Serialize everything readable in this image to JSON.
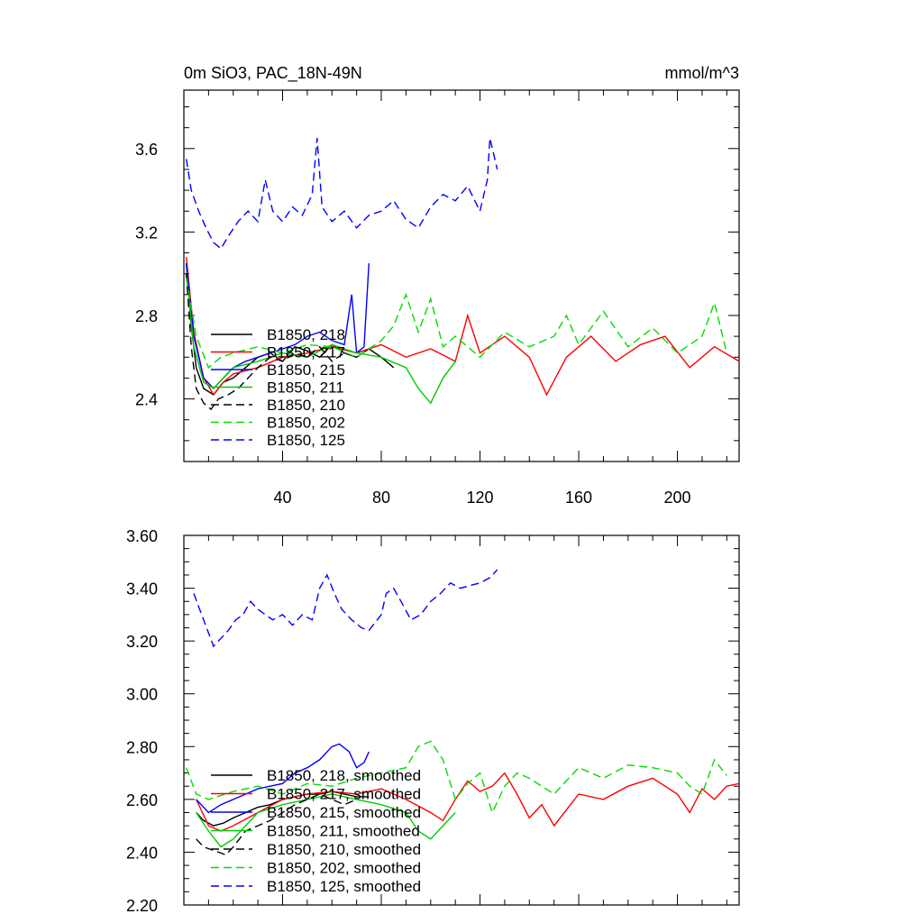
{
  "chart_data": [
    {
      "type": "line",
      "title": "0m SiO3, PAC_18N-49N",
      "units": "mmol/m^3",
      "xlim": [
        0,
        225
      ],
      "ylim": [
        2.1,
        3.88
      ],
      "xticks": [
        40,
        80,
        120,
        160,
        200
      ],
      "xtick_labels": [
        "40",
        "80",
        "120",
        "160",
        "200"
      ],
      "yticks": [
        2.4,
        2.8,
        3.2,
        3.6
      ],
      "ytick_labels": [
        "2.4",
        "2.8",
        "3.2",
        "3.6"
      ],
      "legend_position": "lower-left",
      "series": [
        {
          "name": "B1850, 218",
          "color": "#000000",
          "dash": "solid",
          "x": [
            1,
            3,
            5,
            8,
            12,
            16,
            20,
            25,
            30,
            35,
            40,
            45,
            50,
            55,
            60,
            65,
            70,
            75,
            80,
            85
          ],
          "y": [
            3.05,
            2.75,
            2.55,
            2.45,
            2.42,
            2.48,
            2.5,
            2.55,
            2.6,
            2.62,
            2.58,
            2.65,
            2.63,
            2.6,
            2.66,
            2.62,
            2.6,
            2.64,
            2.6,
            2.55
          ]
        },
        {
          "name": "B1850, 217",
          "color": "#ff0000",
          "dash": "solid",
          "x": [
            1,
            4,
            8,
            12,
            16,
            20,
            30,
            40,
            50,
            60,
            70,
            80,
            90,
            100,
            110,
            115,
            120,
            130,
            140,
            147,
            155,
            165,
            175,
            185,
            195,
            205,
            215,
            225
          ],
          "y": [
            3.08,
            2.72,
            2.5,
            2.42,
            2.48,
            2.52,
            2.55,
            2.6,
            2.62,
            2.65,
            2.62,
            2.66,
            2.6,
            2.64,
            2.58,
            2.8,
            2.62,
            2.7,
            2.6,
            2.42,
            2.6,
            2.7,
            2.58,
            2.66,
            2.7,
            2.55,
            2.65,
            2.58
          ]
        },
        {
          "name": "B1850, 215",
          "color": "#0000ff",
          "dash": "solid",
          "x": [
            1,
            4,
            8,
            12,
            16,
            20,
            25,
            30,
            35,
            40,
            45,
            50,
            55,
            60,
            65,
            68,
            70,
            73,
            75
          ],
          "y": [
            3.05,
            2.7,
            2.5,
            2.45,
            2.5,
            2.55,
            2.58,
            2.6,
            2.62,
            2.64,
            2.66,
            2.7,
            2.72,
            2.68,
            2.66,
            2.9,
            2.62,
            2.65,
            3.05
          ]
        },
        {
          "name": "B1850, 211",
          "color": "#00cc00",
          "dash": "solid",
          "x": [
            1,
            4,
            8,
            12,
            16,
            20,
            30,
            40,
            50,
            60,
            70,
            80,
            90,
            95,
            100,
            105,
            110
          ],
          "y": [
            3.0,
            2.65,
            2.48,
            2.45,
            2.5,
            2.55,
            2.58,
            2.62,
            2.6,
            2.66,
            2.62,
            2.6,
            2.55,
            2.45,
            2.38,
            2.5,
            2.58
          ]
        },
        {
          "name": "B1850, 210",
          "color": "#000000",
          "dash": "dashed",
          "x": [
            1,
            3,
            5,
            8,
            11,
            14,
            18,
            22,
            26,
            30,
            35,
            40,
            45,
            50,
            55,
            60,
            65,
            70
          ],
          "y": [
            3.0,
            2.65,
            2.45,
            2.38,
            2.35,
            2.4,
            2.42,
            2.45,
            2.5,
            2.55,
            2.6,
            2.58,
            2.62,
            2.6,
            2.65,
            2.58,
            2.62,
            2.6
          ]
        },
        {
          "name": "B1850, 202",
          "color": "#00dd00",
          "dash": "dashed",
          "x": [
            1,
            5,
            10,
            15,
            20,
            30,
            40,
            50,
            60,
            70,
            80,
            85,
            90,
            95,
            100,
            105,
            110,
            120,
            130,
            140,
            150,
            155,
            160,
            170,
            180,
            190,
            200,
            210,
            215,
            220
          ],
          "y": [
            2.98,
            2.7,
            2.55,
            2.6,
            2.62,
            2.65,
            2.62,
            2.66,
            2.65,
            2.6,
            2.68,
            2.75,
            2.9,
            2.72,
            2.88,
            2.65,
            2.7,
            2.6,
            2.72,
            2.65,
            2.7,
            2.8,
            2.66,
            2.82,
            2.65,
            2.74,
            2.62,
            2.7,
            2.86,
            2.62
          ]
        },
        {
          "name": "B1850, 125",
          "color": "#0000ff",
          "dash": "dashed",
          "x": [
            1,
            3,
            6,
            9,
            12,
            15,
            18,
            22,
            26,
            30,
            33,
            36,
            40,
            44,
            48,
            52,
            54,
            56,
            60,
            65,
            70,
            75,
            80,
            85,
            90,
            95,
            100,
            105,
            110,
            115,
            120,
            123,
            124,
            127
          ],
          "y": [
            3.55,
            3.4,
            3.3,
            3.22,
            3.15,
            3.12,
            3.18,
            3.25,
            3.3,
            3.25,
            3.45,
            3.3,
            3.25,
            3.32,
            3.28,
            3.38,
            3.65,
            3.32,
            3.25,
            3.3,
            3.22,
            3.28,
            3.3,
            3.35,
            3.26,
            3.22,
            3.32,
            3.38,
            3.35,
            3.42,
            3.3,
            3.45,
            3.65,
            3.5
          ]
        }
      ]
    },
    {
      "type": "line",
      "xlim": [
        0,
        225
      ],
      "ylim": [
        2.2,
        3.6
      ],
      "yticks": [
        2.2,
        2.4,
        2.6,
        2.8,
        3.0,
        3.2,
        3.4,
        3.6
      ],
      "ytick_labels": [
        "2.20",
        "2.40",
        "2.60",
        "2.80",
        "3.00",
        "3.20",
        "3.40",
        "3.60"
      ],
      "legend_position": "lower-left",
      "series": [
        {
          "name": "B1850, 218, smoothed",
          "color": "#000000",
          "dash": "solid",
          "x": [
            5,
            8,
            12,
            16,
            20,
            25,
            30,
            35,
            40,
            45,
            50,
            55,
            60,
            65,
            70,
            75
          ],
          "y": [
            2.55,
            2.52,
            2.5,
            2.51,
            2.53,
            2.55,
            2.57,
            2.58,
            2.6,
            2.61,
            2.62,
            2.62,
            2.63,
            2.62,
            2.61,
            2.61
          ]
        },
        {
          "name": "B1850, 217, smoothed",
          "color": "#ff0000",
          "dash": "solid",
          "x": [
            5,
            10,
            15,
            20,
            30,
            40,
            50,
            60,
            70,
            80,
            90,
            100,
            105,
            110,
            115,
            120,
            125,
            130,
            135,
            140,
            145,
            150,
            160,
            170,
            180,
            190,
            200,
            205,
            210,
            215,
            220,
            225
          ],
          "y": [
            2.6,
            2.5,
            2.48,
            2.5,
            2.55,
            2.6,
            2.62,
            2.63,
            2.62,
            2.64,
            2.6,
            2.55,
            2.52,
            2.6,
            2.67,
            2.63,
            2.65,
            2.7,
            2.62,
            2.53,
            2.58,
            2.5,
            2.62,
            2.6,
            2.65,
            2.68,
            2.62,
            2.55,
            2.64,
            2.6,
            2.65,
            2.66
          ]
        },
        {
          "name": "B1850, 215, smoothed",
          "color": "#0000ff",
          "dash": "solid",
          "x": [
            5,
            10,
            15,
            20,
            25,
            30,
            35,
            40,
            45,
            50,
            55,
            60,
            63,
            67,
            70,
            73,
            75
          ],
          "y": [
            2.6,
            2.55,
            2.58,
            2.6,
            2.62,
            2.64,
            2.65,
            2.66,
            2.7,
            2.72,
            2.75,
            2.8,
            2.81,
            2.78,
            2.72,
            2.74,
            2.78
          ]
        },
        {
          "name": "B1850, 211, smoothed",
          "color": "#00cc00",
          "dash": "solid",
          "x": [
            5,
            10,
            15,
            20,
            25,
            30,
            40,
            50,
            60,
            70,
            80,
            90,
            95,
            100,
            105,
            110
          ],
          "y": [
            2.55,
            2.48,
            2.42,
            2.45,
            2.5,
            2.55,
            2.58,
            2.6,
            2.62,
            2.6,
            2.58,
            2.55,
            2.48,
            2.45,
            2.5,
            2.55
          ]
        },
        {
          "name": "B1850, 210, smoothed",
          "color": "#000000",
          "dash": "dashed",
          "x": [
            5,
            8,
            11,
            14,
            17,
            20,
            25,
            30,
            35,
            40,
            45,
            50,
            55,
            60,
            65,
            70
          ],
          "y": [
            2.45,
            2.42,
            2.41,
            2.4,
            2.39,
            2.42,
            2.48,
            2.5,
            2.52,
            2.55,
            2.58,
            2.6,
            2.62,
            2.6,
            2.58,
            2.6
          ]
        },
        {
          "name": "B1850, 202, smoothed",
          "color": "#00dd00",
          "dash": "dashed",
          "x": [
            1,
            5,
            10,
            20,
            30,
            40,
            50,
            60,
            70,
            80,
            90,
            95,
            100,
            105,
            110,
            115,
            120,
            125,
            130,
            135,
            140,
            150,
            160,
            170,
            180,
            190,
            200,
            205,
            210,
            215,
            220
          ],
          "y": [
            2.72,
            2.62,
            2.6,
            2.63,
            2.65,
            2.62,
            2.66,
            2.65,
            2.68,
            2.7,
            2.72,
            2.8,
            2.82,
            2.75,
            2.6,
            2.66,
            2.7,
            2.55,
            2.65,
            2.7,
            2.68,
            2.62,
            2.72,
            2.68,
            2.73,
            2.72,
            2.7,
            2.65,
            2.62,
            2.75,
            2.69
          ]
        },
        {
          "name": "B1850, 125, smoothed",
          "color": "#0000ff",
          "dash": "dashed",
          "x": [
            4,
            6,
            8,
            10,
            12,
            14,
            16,
            18,
            21,
            24,
            27,
            30,
            33,
            36,
            40,
            44,
            48,
            52,
            55,
            58,
            61,
            64,
            68,
            72,
            75,
            80,
            82,
            85,
            88,
            92,
            96,
            100,
            104,
            108,
            112,
            116,
            120,
            124,
            127
          ],
          "y": [
            3.38,
            3.33,
            3.28,
            3.23,
            3.18,
            3.2,
            3.22,
            3.24,
            3.28,
            3.3,
            3.35,
            3.32,
            3.3,
            3.28,
            3.3,
            3.26,
            3.3,
            3.28,
            3.4,
            3.45,
            3.38,
            3.32,
            3.28,
            3.25,
            3.24,
            3.3,
            3.38,
            3.4,
            3.35,
            3.28,
            3.3,
            3.35,
            3.38,
            3.42,
            3.4,
            3.41,
            3.42,
            3.44,
            3.47
          ]
        }
      ]
    }
  ]
}
